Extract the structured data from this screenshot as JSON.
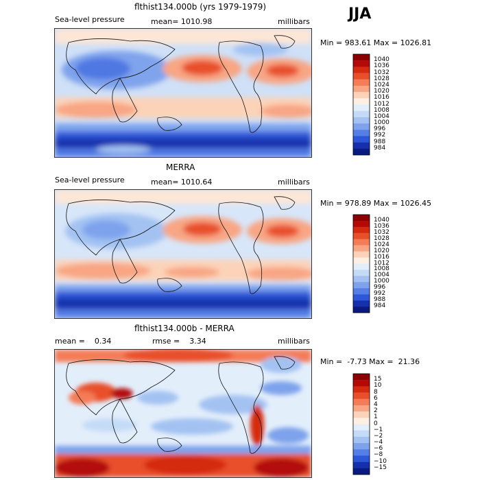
{
  "season": "JJA",
  "panels": [
    {
      "title": "flthist134.000b (yrs 1979-1979)",
      "left_label": "Sea-level pressure",
      "mid_label": "mean= 1010.98",
      "right_label": "millibars",
      "minmax": "Min = 983.61 Max = 1026.81",
      "colorbar_labels": [
        "1040",
        "1036",
        "1032",
        "1028",
        "1024",
        "1020",
        "1016",
        "1012",
        "1008",
        "1004",
        "1000",
        "996",
        "992",
        "988",
        "984"
      ],
      "colorbar_colors": [
        "#8b0000",
        "#b30a08",
        "#d42a10",
        "#e8502c",
        "#f47c56",
        "#f8a684",
        "#fcd3b8",
        "#fdf0e2",
        "#e3eefb",
        "#c4dbf7",
        "#a3c2f2",
        "#7ea3ec",
        "#557ee6",
        "#2d57d8",
        "#1530ad",
        "#0a1a80"
      ]
    },
    {
      "title": "MERRA",
      "left_label": "Sea-level pressure",
      "mid_label": "mean= 1010.64",
      "right_label": "millibars",
      "minmax": "Min = 978.89 Max = 1026.45",
      "colorbar_labels": [
        "1040",
        "1036",
        "1032",
        "1028",
        "1024",
        "1020",
        "1016",
        "1012",
        "1008",
        "1004",
        "1000",
        "996",
        "992",
        "988",
        "984"
      ],
      "colorbar_colors": [
        "#8b0000",
        "#b30a08",
        "#d42a10",
        "#e8502c",
        "#f47c56",
        "#f8a684",
        "#fcd3b8",
        "#fdf0e2",
        "#e3eefb",
        "#c4dbf7",
        "#a3c2f2",
        "#7ea3ec",
        "#557ee6",
        "#2d57d8",
        "#1530ad",
        "#0a1a80"
      ]
    },
    {
      "title": "flthist134.000b - MERRA",
      "left_label": "mean =    0.34",
      "mid_label": "rmse =    3.34",
      "right_label": "millibars",
      "minmax": "Min =  -7.73 Max =  21.36",
      "colorbar_labels": [
        "15",
        "10",
        "8",
        "6",
        "4",
        "2",
        "1",
        "0",
        "−1",
        "−2",
        "−4",
        "−6",
        "−8",
        "−10",
        "−15"
      ],
      "colorbar_colors": [
        "#8b0000",
        "#b30a08",
        "#d42a10",
        "#e8502c",
        "#f47c56",
        "#f8a684",
        "#fcd3b8",
        "#fdf0e2",
        "#e3eefb",
        "#c4dbf7",
        "#a3c2f2",
        "#7ea3ec",
        "#557ee6",
        "#2d57d8",
        "#1530ad",
        "#0a1a80"
      ]
    }
  ]
}
